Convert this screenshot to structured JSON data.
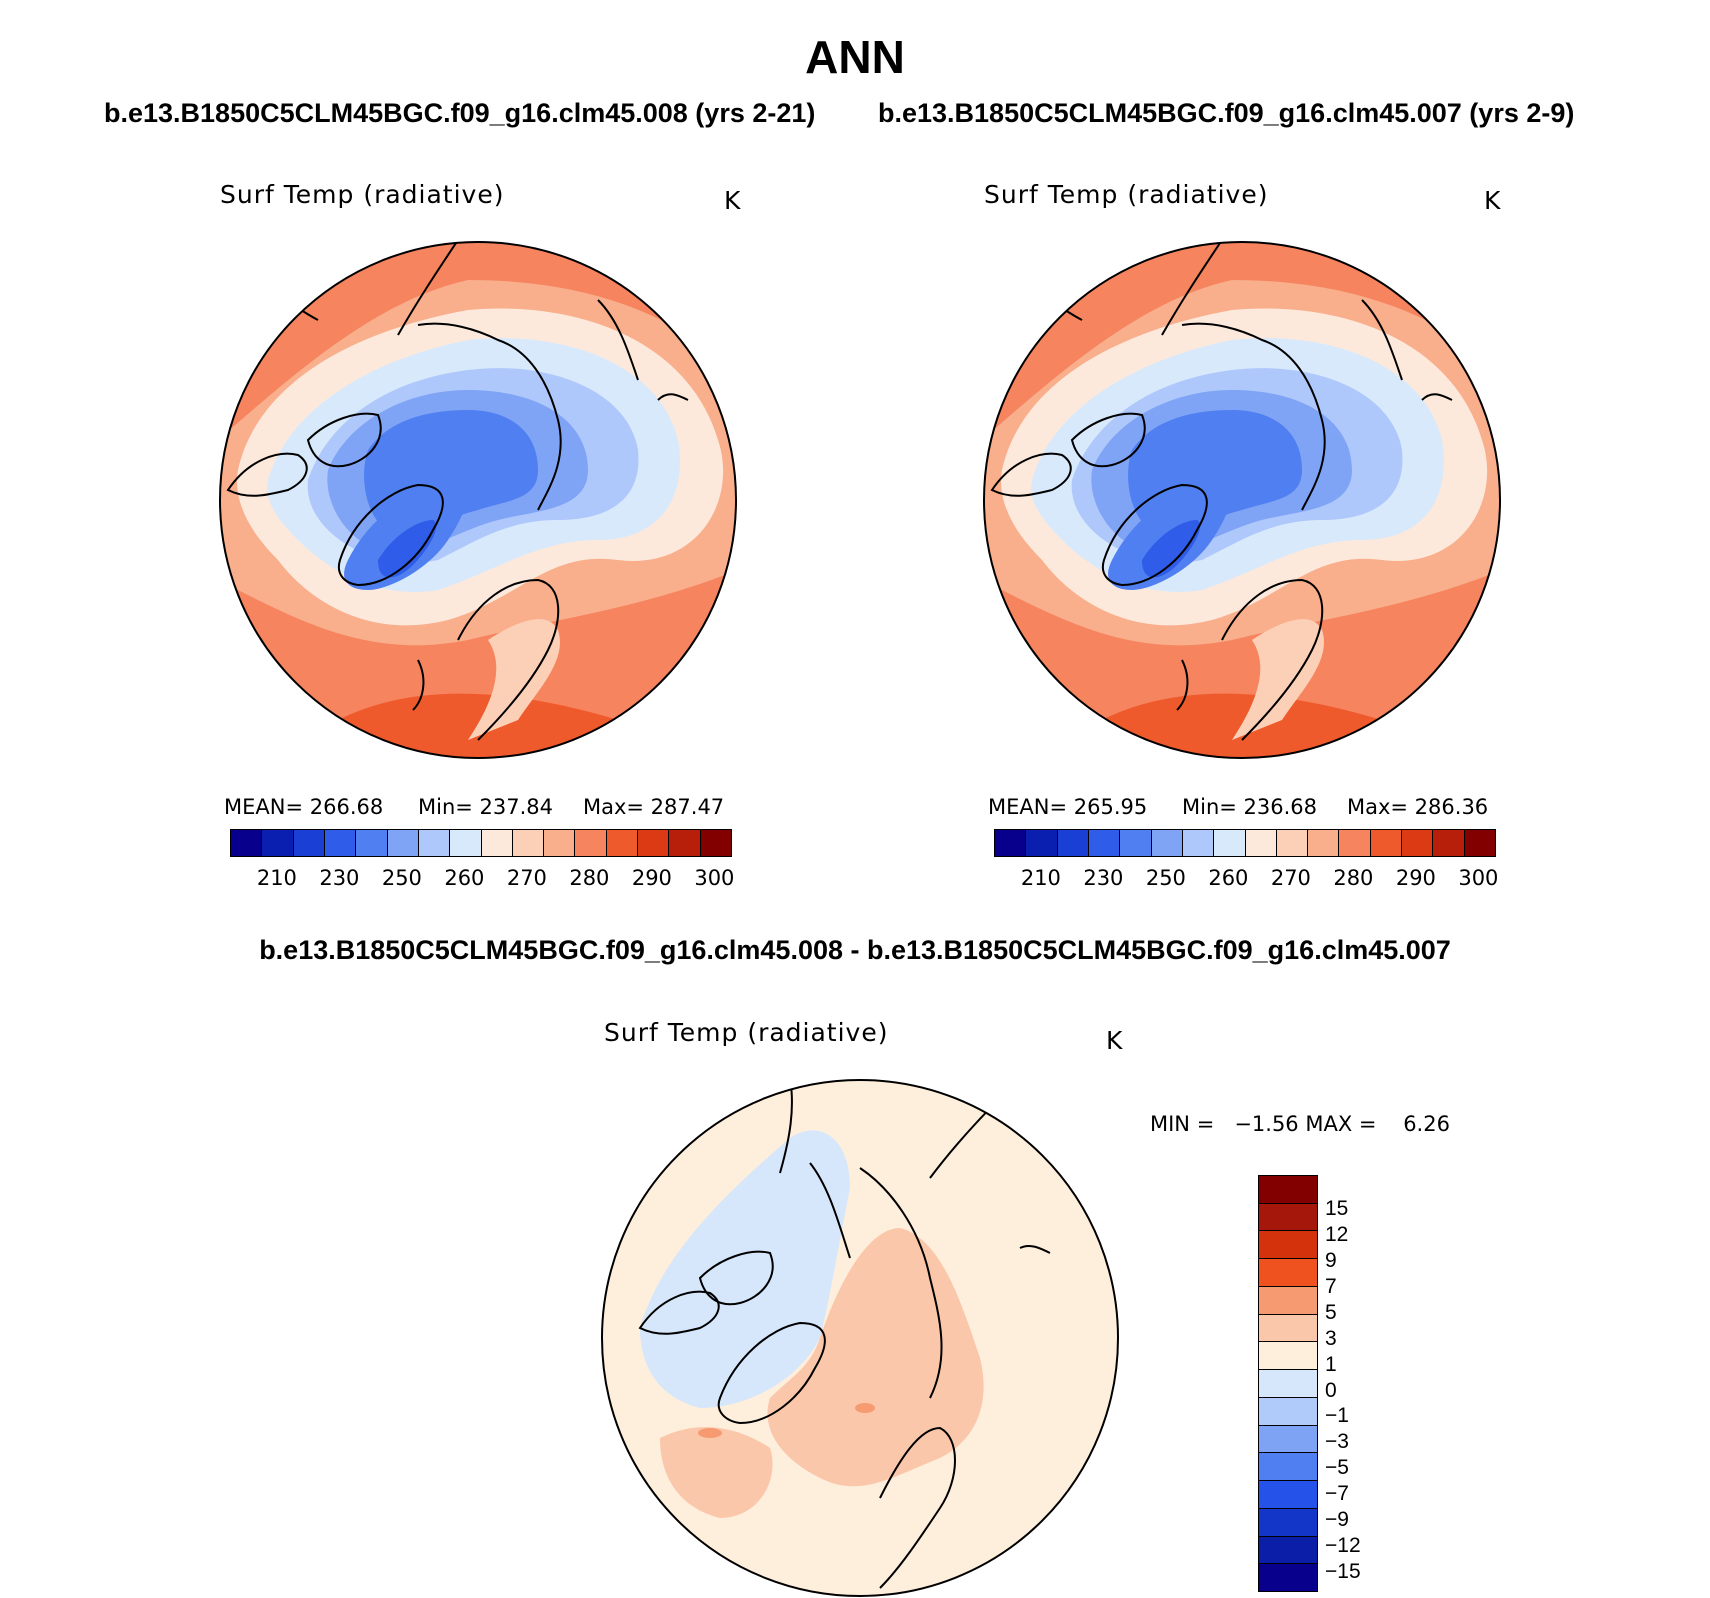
{
  "title": "ANN",
  "subtitle_left": "b.e13.B1850C5CLM45BGC.f09_g16.clm45.008 (yrs 2-21)",
  "subtitle_right": "b.e13.B1850C5CLM45BGC.f09_g16.clm45.007 (yrs 2-9)",
  "diff_title": "b.e13.B1850C5CLM45BGC.f09_g16.clm45.008 - b.e13.B1850C5CLM45BGC.f09_g16.clm45.007",
  "panels": [
    {
      "variable": "Surf Temp (radiative)",
      "units": "K",
      "mean_text": "MEAN= 266.68",
      "min_text": "Min= 237.84",
      "max_text": "Max= 287.47"
    },
    {
      "variable": "Surf Temp (radiative)",
      "units": "K",
      "mean_text": "MEAN= 265.95",
      "min_text": "Min= 236.68",
      "max_text": "Max= 286.36"
    }
  ],
  "diff_panel": {
    "variable": "Surf Temp (radiative)",
    "units": "K",
    "minmax_text": "MIN =   −1.56 MAX =    6.26"
  },
  "abs_colorbar": {
    "colors": [
      "#08008c",
      "#0a1fb0",
      "#1a3fd4",
      "#2f5ce8",
      "#4f7ff0",
      "#7fa3f5",
      "#afc8fb",
      "#d8e9fb",
      "#fde9dc",
      "#fcd0b7",
      "#f9ae8c",
      "#f5845f",
      "#ef5a2d",
      "#db3a14",
      "#b81f0a",
      "#820000"
    ],
    "tick_labels": [
      "210",
      "230",
      "250",
      "260",
      "270",
      "280",
      "290",
      "300"
    ]
  },
  "diff_colorbar": {
    "colors": [
      "#820000",
      "#a5170a",
      "#d3320c",
      "#f0521f",
      "#f69a72",
      "#fac7ab",
      "#feeedc",
      "#d6e7fb",
      "#b0cafa",
      "#7fa3f4",
      "#4f7ff0",
      "#2553ea",
      "#1436c8",
      "#0a1ea8",
      "#08008c"
    ],
    "tick_labels": [
      "15",
      "12",
      "9",
      "7",
      "5",
      "3",
      "1",
      "0",
      "−1",
      "−3",
      "−5",
      "−7",
      "−9",
      "−12",
      "−15"
    ]
  }
}
